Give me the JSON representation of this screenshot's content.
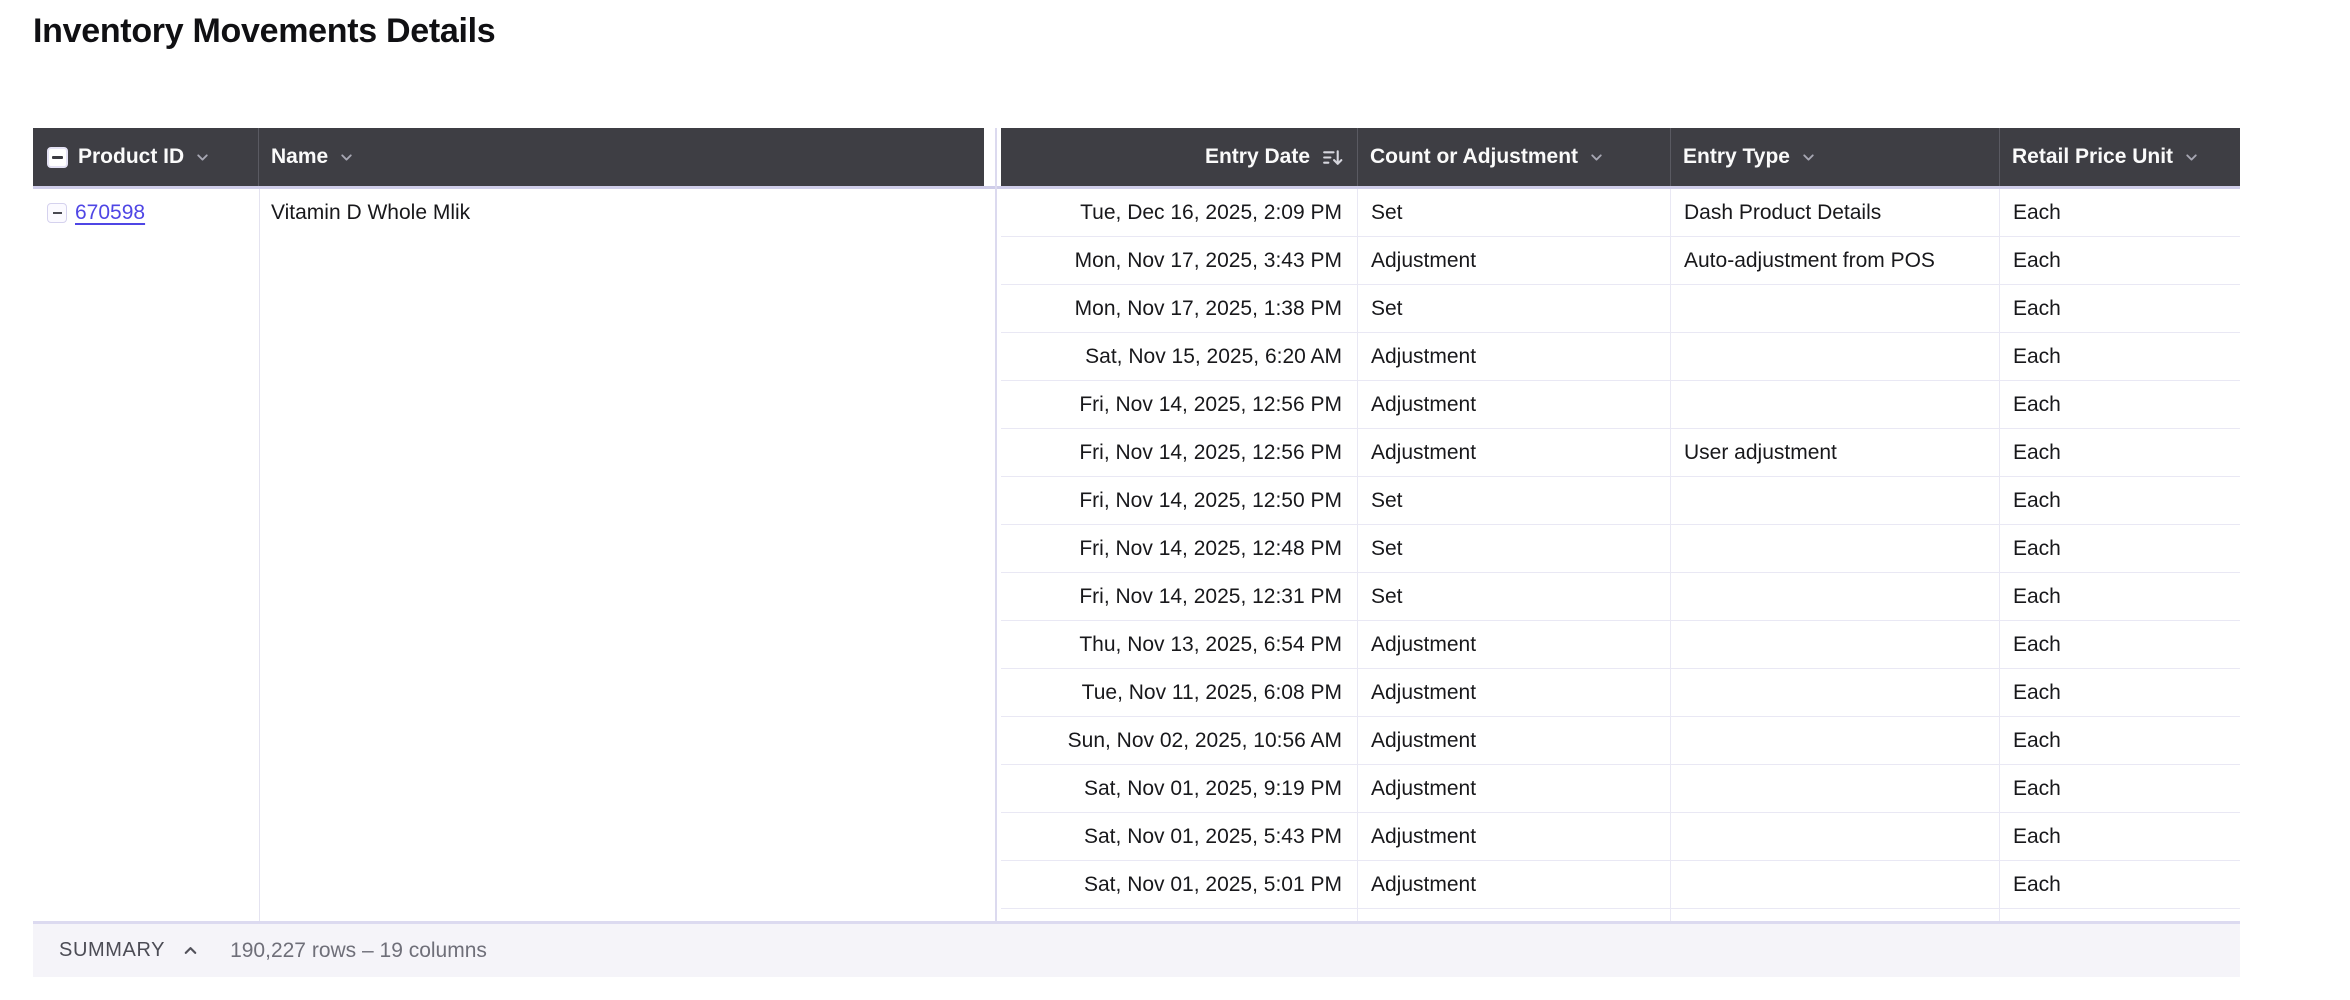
{
  "page": {
    "title": "Inventory Movements Details"
  },
  "colors": {
    "header_bg": "#3e3e44",
    "accent_link": "#4f46e5",
    "grid_line": "#e9e8f4",
    "header_underline": "#cfcde9",
    "summary_bg": "#f5f4f9"
  },
  "icons": {
    "select_all": "indeterminate-checkbox-icon",
    "collapse": "minus-icon",
    "sort": "sort-descending-icon",
    "column_menu": "chevron-down-icon",
    "summary_toggle": "chevron-up-icon"
  },
  "table": {
    "columns": [
      {
        "label": "Product ID"
      },
      {
        "label": "Name"
      },
      {
        "label": "Entry Date"
      },
      {
        "label": "Count or Adjustment"
      },
      {
        "label": "Entry Type"
      },
      {
        "label": "Retail Price Unit"
      }
    ],
    "group": {
      "product_id": "670598",
      "name": "Vitamin D Whole Mlik"
    },
    "rows": [
      {
        "entry_date": "Tue, Dec 16, 2025, 2:09 PM",
        "count_or_adjustment": "Set",
        "entry_type": "Dash Product Details",
        "retail_price_unit": "Each"
      },
      {
        "entry_date": "Mon, Nov 17, 2025, 3:43 PM",
        "count_or_adjustment": "Adjustment",
        "entry_type": "Auto-adjustment from POS",
        "retail_price_unit": "Each"
      },
      {
        "entry_date": "Mon, Nov 17, 2025, 1:38 PM",
        "count_or_adjustment": "Set",
        "entry_type": "",
        "retail_price_unit": "Each"
      },
      {
        "entry_date": "Sat, Nov 15, 2025, 6:20 AM",
        "count_or_adjustment": "Adjustment",
        "entry_type": "",
        "retail_price_unit": "Each"
      },
      {
        "entry_date": "Fri, Nov 14, 2025, 12:56 PM",
        "count_or_adjustment": "Adjustment",
        "entry_type": "",
        "retail_price_unit": "Each"
      },
      {
        "entry_date": "Fri, Nov 14, 2025, 12:56 PM",
        "count_or_adjustment": "Adjustment",
        "entry_type": "User adjustment",
        "retail_price_unit": "Each"
      },
      {
        "entry_date": "Fri, Nov 14, 2025, 12:50 PM",
        "count_or_adjustment": "Set",
        "entry_type": "",
        "retail_price_unit": "Each"
      },
      {
        "entry_date": "Fri, Nov 14, 2025, 12:48 PM",
        "count_or_adjustment": "Set",
        "entry_type": "",
        "retail_price_unit": "Each"
      },
      {
        "entry_date": "Fri, Nov 14, 2025, 12:31 PM",
        "count_or_adjustment": "Set",
        "entry_type": "",
        "retail_price_unit": "Each"
      },
      {
        "entry_date": "Thu, Nov 13, 2025, 6:54 PM",
        "count_or_adjustment": "Adjustment",
        "entry_type": "",
        "retail_price_unit": "Each"
      },
      {
        "entry_date": "Tue, Nov 11, 2025, 6:08 PM",
        "count_or_adjustment": "Adjustment",
        "entry_type": "",
        "retail_price_unit": "Each"
      },
      {
        "entry_date": "Sun, Nov 02, 2025, 10:56 AM",
        "count_or_adjustment": "Adjustment",
        "entry_type": "",
        "retail_price_unit": "Each"
      },
      {
        "entry_date": "Sat, Nov 01, 2025, 9:19 PM",
        "count_or_adjustment": "Adjustment",
        "entry_type": "",
        "retail_price_unit": "Each"
      },
      {
        "entry_date": "Sat, Nov 01, 2025, 5:43 PM",
        "count_or_adjustment": "Adjustment",
        "entry_type": "",
        "retail_price_unit": "Each"
      },
      {
        "entry_date": "Sat, Nov 01, 2025, 5:01 PM",
        "count_or_adjustment": "Adjustment",
        "entry_type": "",
        "retail_price_unit": "Each"
      }
    ]
  },
  "summary": {
    "label": "SUMMARY",
    "info": "190,227 rows – 19 columns"
  }
}
